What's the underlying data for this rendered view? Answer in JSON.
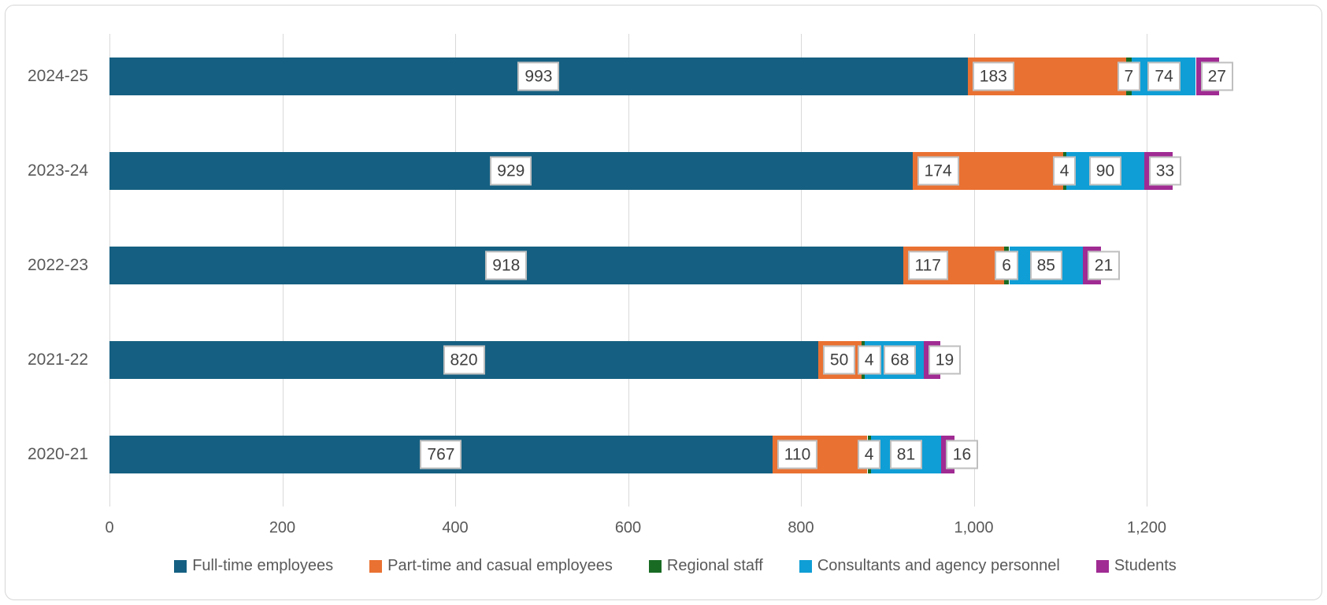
{
  "chart_data": {
    "type": "bar",
    "orientation": "horizontal",
    "stacked": true,
    "title": "",
    "categories": [
      "2024-25",
      "2023-24",
      "2022-23",
      "2021-22",
      "2020-21"
    ],
    "series": [
      {
        "name": "Full-time employees",
        "color": "#156082",
        "values": [
          993,
          929,
          918,
          820,
          767
        ]
      },
      {
        "name": "Part-time and casual employees",
        "color": "#E97132",
        "values": [
          183,
          174,
          117,
          50,
          110
        ]
      },
      {
        "name": "Regional staff",
        "color": "#196B24",
        "values": [
          7,
          4,
          6,
          4,
          4
        ]
      },
      {
        "name": "Consultants and agency personnel",
        "color": "#0F9ED5",
        "values": [
          74,
          90,
          85,
          68,
          81
        ]
      },
      {
        "name": "Students",
        "color": "#A02B93",
        "values": [
          27,
          33,
          21,
          19,
          16
        ]
      }
    ],
    "totals": [
      1284,
      1230,
      1147,
      961,
      978
    ],
    "data_labels_visible": true,
    "x_axis": {
      "tick_labels": [
        "0",
        "200",
        "400",
        "600",
        "800",
        "1,000",
        "1,200"
      ],
      "tick_values": [
        0,
        200,
        400,
        600,
        800,
        1000,
        1200
      ],
      "min": 0,
      "max": 1200
    },
    "grid": true,
    "legend_position": "bottom",
    "colors": {
      "grid": "#D9D9D9",
      "axis_text": "#595959",
      "data_label_text": "#404040",
      "data_label_border": "#BFBFBF",
      "background": "#FFFFFF"
    }
  }
}
